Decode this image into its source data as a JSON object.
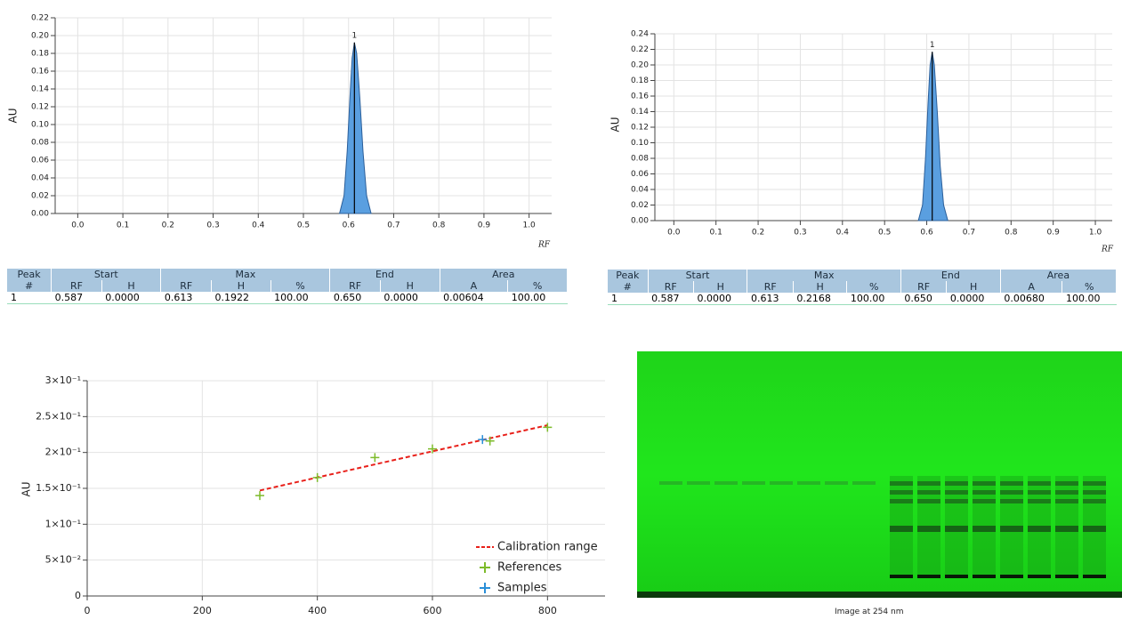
{
  "chart_data": [
    {
      "type": "area",
      "x_label": "RF",
      "y_label": "AU",
      "color": "#5a9fe0",
      "grid": true,
      "xlim": [
        -0.05,
        1.05
      ],
      "ylim": [
        0,
        0.22
      ],
      "xticks": [
        {
          "value": 0,
          "label": "0.0"
        },
        0.1,
        0.2,
        0.3,
        0.4,
        0.5,
        0.6,
        0.7,
        0.8,
        0.9,
        {
          "value": 1,
          "label": "1.0"
        }
      ],
      "yticks": [
        {
          "value": 0,
          "label": "0.00"
        },
        {
          "value": 0.02,
          "label": "0.02"
        },
        {
          "value": 0.04,
          "label": "0.04"
        },
        {
          "value": 0.06,
          "label": "0.06"
        },
        {
          "value": 0.08,
          "label": "0.08"
        },
        {
          "value": 0.1,
          "label": "0.10"
        },
        {
          "value": 0.12,
          "label": "0.12"
        },
        {
          "value": 0.14,
          "label": "0.14"
        },
        {
          "value": 0.16,
          "label": "0.16"
        },
        {
          "value": 0.18,
          "label": "0.18"
        },
        {
          "value": 0.2,
          "label": "0.20"
        },
        {
          "value": 0.22,
          "label": "0.22"
        }
      ],
      "x": [
        0.58,
        0.59,
        0.597,
        0.603,
        0.608,
        0.613,
        0.618,
        0.625,
        0.632,
        0.64,
        0.65
      ],
      "values": [
        0,
        0.02,
        0.07,
        0.13,
        0.175,
        0.1922,
        0.18,
        0.13,
        0.07,
        0.02,
        0
      ],
      "peaks": [
        {
          "label": "1",
          "x": 0.613,
          "y": 0.1922
        }
      ]
    },
    {
      "type": "area",
      "x_label": "RF",
      "y_label": "AU",
      "color": "#5a9fe0",
      "grid": true,
      "xlim": [
        -0.045,
        1.04
      ],
      "ylim": [
        0,
        0.24
      ],
      "xticks": [
        {
          "value": 0,
          "label": "0.0"
        },
        0.1,
        0.2,
        0.3,
        0.4,
        0.5,
        0.6,
        0.7,
        0.8,
        0.9,
        {
          "value": 1,
          "label": "1.0"
        }
      ],
      "yticks": [
        {
          "value": 0,
          "label": "0.00"
        },
        {
          "value": 0.02,
          "label": "0.02"
        },
        {
          "value": 0.04,
          "label": "0.04"
        },
        {
          "value": 0.06,
          "label": "0.06"
        },
        {
          "value": 0.08,
          "label": "0.08"
        },
        {
          "value": 0.1,
          "label": "0.10"
        },
        {
          "value": 0.12,
          "label": "0.12"
        },
        {
          "value": 0.14,
          "label": "0.14"
        },
        {
          "value": 0.16,
          "label": "0.16"
        },
        {
          "value": 0.18,
          "label": "0.18"
        },
        {
          "value": 0.2,
          "label": "0.20"
        },
        {
          "value": 0.22,
          "label": "0.22"
        },
        {
          "value": 0.24,
          "label": "0.24"
        }
      ],
      "x": [
        0.58,
        0.59,
        0.597,
        0.603,
        0.608,
        0.613,
        0.618,
        0.625,
        0.632,
        0.64,
        0.65
      ],
      "values": [
        0,
        0.02,
        0.08,
        0.15,
        0.2,
        0.2168,
        0.2,
        0.14,
        0.07,
        0.02,
        0
      ],
      "peaks": [
        {
          "label": "1",
          "x": 0.613,
          "y": 0.2168
        }
      ]
    },
    {
      "type": "scatter",
      "y_label": "AU",
      "grid": true,
      "legend": "lower right",
      "xlim": [
        0,
        900
      ],
      "ylim": [
        0,
        0.3
      ],
      "xticks": [
        0,
        200,
        400,
        600,
        800
      ],
      "yticks": [
        {
          "value": 0,
          "label": "0"
        },
        {
          "value": 0.05,
          "label": "5×10⁻²"
        },
        {
          "value": 0.1,
          "label": "1×10⁻¹"
        },
        {
          "value": 0.15,
          "label": "1.5×10⁻¹"
        },
        {
          "value": 0.2,
          "label": "2×10⁻¹"
        },
        {
          "value": 0.25,
          "label": "2.5×10⁻¹"
        },
        {
          "value": 0.3,
          "label": "3×10⁻¹"
        }
      ],
      "series": [
        {
          "name": "Calibration range",
          "color": "#e8201a",
          "marker": "dashed-line",
          "x": [
            300,
            800
          ],
          "values": [
            0.147,
            0.238
          ]
        },
        {
          "name": "References",
          "color": "#7dbb2a",
          "marker": "plus",
          "x": [
            300,
            400,
            500,
            600,
            700,
            800
          ],
          "values": [
            0.14,
            0.165,
            0.193,
            0.205,
            0.216,
            0.235
          ]
        },
        {
          "name": "Samples",
          "color": "#2a8fd8",
          "marker": "plus",
          "x": [
            687
          ],
          "values": [
            0.218
          ]
        }
      ]
    }
  ],
  "tables": [
    {
      "header1": [
        "Peak",
        "Start",
        "Max",
        "End",
        "Area"
      ],
      "header2": [
        "#",
        "RF",
        "H",
        "RF",
        "H",
        "%",
        "RF",
        "H",
        "A",
        "%"
      ],
      "rows": [
        [
          "1",
          "0.587",
          "0.0000",
          "0.613",
          "0.1922",
          "100.00",
          "0.650",
          "0.0000",
          "0.00604",
          "100.00"
        ]
      ]
    },
    {
      "header1": [
        "Peak",
        "Start",
        "Max",
        "End",
        "Area"
      ],
      "header2": [
        "#",
        "RF",
        "H",
        "RF",
        "H",
        "%",
        "RF",
        "H",
        "A",
        "%"
      ],
      "rows": [
        [
          "1",
          "0.587",
          "0.0000",
          "0.613",
          "0.2168",
          "100.00",
          "0.650",
          "0.0000",
          "0.00680",
          "100.00"
        ]
      ]
    }
  ],
  "image": {
    "caption": "Image at 254 nm"
  }
}
